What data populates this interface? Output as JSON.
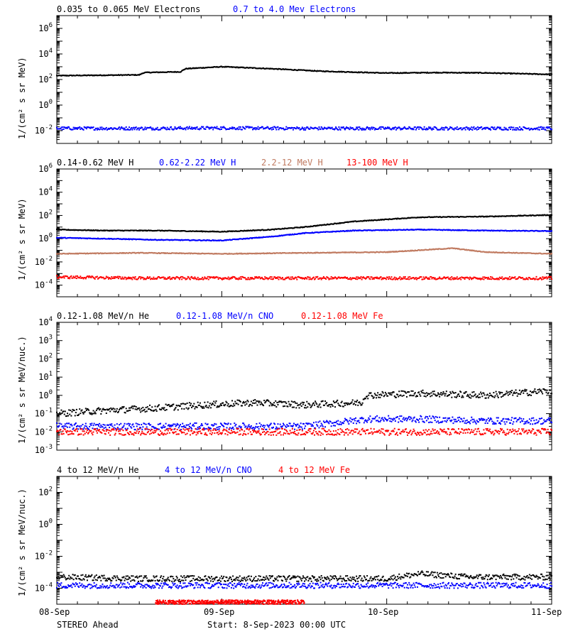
{
  "chart_data": [
    {
      "type": "scatter",
      "ylabel": "1/(cm² s sr MeV)",
      "yscale": "log",
      "ylim": [
        0.001,
        10000000
      ],
      "ytick_labels": [
        "10-2",
        "100",
        "102",
        "104",
        "106"
      ],
      "legend": [
        "0.035 to 0.065 MeV Electrons",
        "0.7 to 4.0 Mev Electrons"
      ],
      "series": [
        {
          "name": "0.035 to 0.065 MeV Electrons",
          "color": "#000000",
          "x": [
            0,
            0.5,
            0.53,
            0.75,
            0.78,
            1.0,
            1.3,
            1.6,
            2.0,
            2.3,
            2.6,
            3.0
          ],
          "y": [
            200,
            230,
            350,
            400,
            700,
            1000,
            700,
            450,
            320,
            350,
            330,
            250
          ]
        },
        {
          "name": "0.7 to 4.0 Mev Electrons",
          "color": "#0000ff",
          "x": [
            0,
            0.5,
            1.0,
            1.5,
            2.0,
            2.5,
            3.0
          ],
          "y": [
            0.015,
            0.015,
            0.016,
            0.015,
            0.015,
            0.015,
            0.015
          ]
        }
      ]
    },
    {
      "type": "scatter",
      "ylabel": "1/(cm² s sr MeV)",
      "yscale": "log",
      "ylim": [
        1e-05,
        1000000
      ],
      "ytick_labels": [
        "10-4",
        "10-2",
        "100",
        "102",
        "104",
        "106"
      ],
      "legend": [
        "0.14-0.62 MeV H",
        "0.62-2.22 MeV H",
        "2.2-12 MeV H",
        "13-100 MeV H"
      ],
      "series": [
        {
          "name": "0.14-0.62 MeV H",
          "color": "#000000",
          "x": [
            0,
            0.3,
            0.6,
            1.0,
            1.3,
            1.5,
            1.8,
            2.2,
            2.6,
            3.0
          ],
          "y": [
            6,
            5,
            5,
            4,
            6,
            10,
            30,
            70,
            80,
            110
          ]
        },
        {
          "name": "0.62-2.22 MeV H",
          "color": "#0000ff",
          "x": [
            0,
            0.3,
            0.6,
            1.0,
            1.3,
            1.5,
            1.8,
            2.2,
            2.6,
            3.0
          ],
          "y": [
            1.2,
            1,
            0.8,
            0.7,
            1.5,
            3,
            5,
            6,
            5,
            4.5
          ]
        },
        {
          "name": "2.2-12 MeV H",
          "color": "#c07a60",
          "x": [
            0,
            0.5,
            1.0,
            1.5,
            2.0,
            2.4,
            2.6,
            3.0
          ],
          "y": [
            0.05,
            0.06,
            0.05,
            0.06,
            0.07,
            0.15,
            0.07,
            0.05
          ]
        },
        {
          "name": "13-100 MeV H",
          "color": "#ff0000",
          "x": [
            0,
            0.5,
            1.0,
            1.5,
            2.0,
            2.5,
            3.0
          ],
          "y": [
            0.0005,
            0.0004,
            0.0004,
            0.0004,
            0.0004,
            0.0004,
            0.0004
          ]
        }
      ]
    },
    {
      "type": "scatter",
      "ylabel": "1/(cm² s sr MeV/nuc.)",
      "yscale": "log",
      "ylim": [
        0.001,
        10000
      ],
      "ytick_labels": [
        "10-3",
        "10-2",
        "10-1",
        "100",
        "101",
        "102",
        "103",
        "104"
      ],
      "legend": [
        "0.12-1.08 MeV/n He",
        "0.12-1.08 MeV/n CNO",
        "0.12-1.08 MeV Fe"
      ],
      "series": [
        {
          "name": "0.12-1.08 MeV/n He",
          "color": "#000000",
          "x": [
            0,
            0.3,
            0.6,
            0.9,
            1.2,
            1.5,
            1.85,
            1.87,
            2.2,
            2.6,
            3.0
          ],
          "y": [
            0.1,
            0.15,
            0.2,
            0.3,
            0.4,
            0.3,
            0.4,
            1.0,
            1.3,
            1.0,
            1.8
          ]
        },
        {
          "name": "0.12-1.08 MeV/n CNO",
          "color": "#0000ff",
          "x": [
            0,
            0.5,
            1.0,
            1.5,
            1.88,
            2.2,
            2.6,
            3.0
          ],
          "y": [
            0.02,
            0.02,
            0.02,
            0.02,
            0.05,
            0.05,
            0.04,
            0.04
          ]
        },
        {
          "name": "0.12-1.08 MeV Fe",
          "color": "#ff0000",
          "x": [
            0,
            0.5,
            1.0,
            1.5,
            2.0,
            2.5,
            3.0
          ],
          "y": [
            0.01,
            0.01,
            0.01,
            0.01,
            0.01,
            0.01,
            0.01
          ]
        }
      ]
    },
    {
      "type": "scatter",
      "ylabel": "1/(cm² s sr MeV/nuc.)",
      "yscale": "log",
      "ylim": [
        1e-05,
        1000
      ],
      "ytick_labels": [
        "10-4",
        "10-2",
        "100",
        "102"
      ],
      "legend": [
        "4 to 12 MeV/n He",
        "4 to 12 MeV/n CNO",
        "4 to 12 MeV Fe"
      ],
      "series": [
        {
          "name": "4 to 12 MeV/n He",
          "color": "#000000",
          "x": [
            0,
            0.5,
            1.0,
            1.5,
            2.0,
            2.2,
            2.5,
            3.0
          ],
          "y": [
            0.0005,
            0.0004,
            0.0004,
            0.0004,
            0.0004,
            0.0008,
            0.0005,
            0.0005
          ]
        },
        {
          "name": "4 to 12 MeV/n CNO",
          "color": "#0000ff",
          "x": [
            0,
            0.5,
            1.0,
            1.5,
            2.0,
            2.5,
            3.0
          ],
          "y": [
            0.00015,
            0.00015,
            0.00015,
            0.00015,
            0.00015,
            0.00015,
            0.00015
          ]
        },
        {
          "name": "4 to 12 MeV Fe",
          "color": "#ff0000",
          "x": [
            0.6,
            0.95,
            1.5
          ],
          "y": [
            1.2e-05,
            1.2e-05,
            1.2e-05
          ]
        }
      ]
    }
  ],
  "x_axis": {
    "range_days": [
      0,
      3
    ],
    "tick_labels": [
      "08-Sep",
      "09-Sep",
      "10-Sep",
      "11-Sep"
    ]
  },
  "footer": {
    "spacecraft": "STEREO Ahead",
    "start": "Start:  8-Sep-2023 00:00 UTC"
  }
}
